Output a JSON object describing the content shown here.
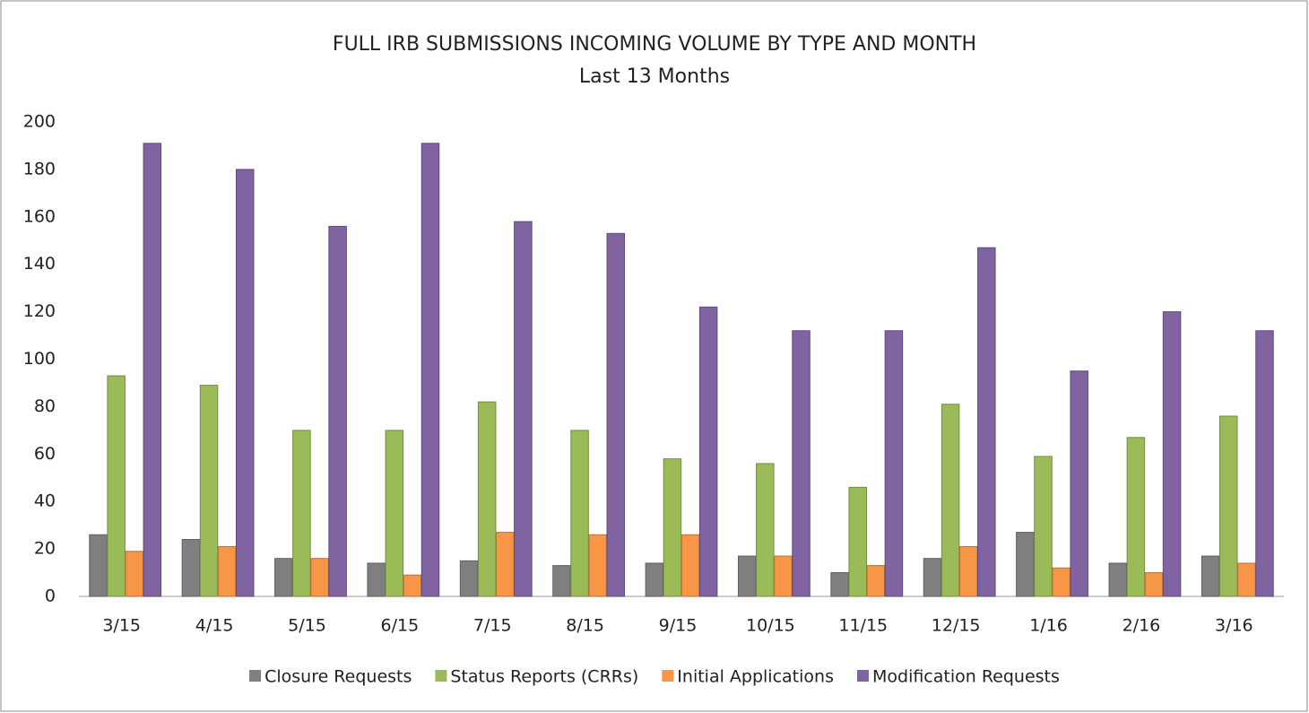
{
  "chart_data": {
    "type": "bar",
    "title": "FULL IRB SUBMISSIONS INCOMING VOLUME BY TYPE AND MONTH",
    "subtitle": "Last 13 Months",
    "categories": [
      "3/15",
      "4/15",
      "5/15",
      "6/15",
      "7/15",
      "8/15",
      "9/15",
      "10/15",
      "11/15",
      "12/15",
      "1/16",
      "2/16",
      "3/16"
    ],
    "series": [
      {
        "name": "Closure Requests",
        "color": "#7f7f7f",
        "values": [
          26,
          24,
          16,
          14,
          15,
          13,
          14,
          17,
          10,
          16,
          27,
          14,
          17
        ]
      },
      {
        "name": "Status Reports (CRRs)",
        "color": "#9bbb59",
        "values": [
          93,
          89,
          70,
          70,
          82,
          70,
          58,
          56,
          46,
          81,
          59,
          67,
          76
        ]
      },
      {
        "name": "Initial Applications",
        "color": "#f79646",
        "values": [
          19,
          21,
          16,
          9,
          27,
          26,
          26,
          17,
          13,
          21,
          12,
          10,
          14
        ]
      },
      {
        "name": "Modification Requests",
        "color": "#8064a2",
        "values": [
          191,
          180,
          156,
          191,
          158,
          153,
          122,
          112,
          112,
          147,
          95,
          120,
          112
        ]
      }
    ],
    "ylim": [
      0,
      200
    ],
    "yticks": [
      0,
      20,
      40,
      60,
      80,
      100,
      120,
      140,
      160,
      180,
      200
    ],
    "grid": false,
    "legend": "bottom"
  }
}
